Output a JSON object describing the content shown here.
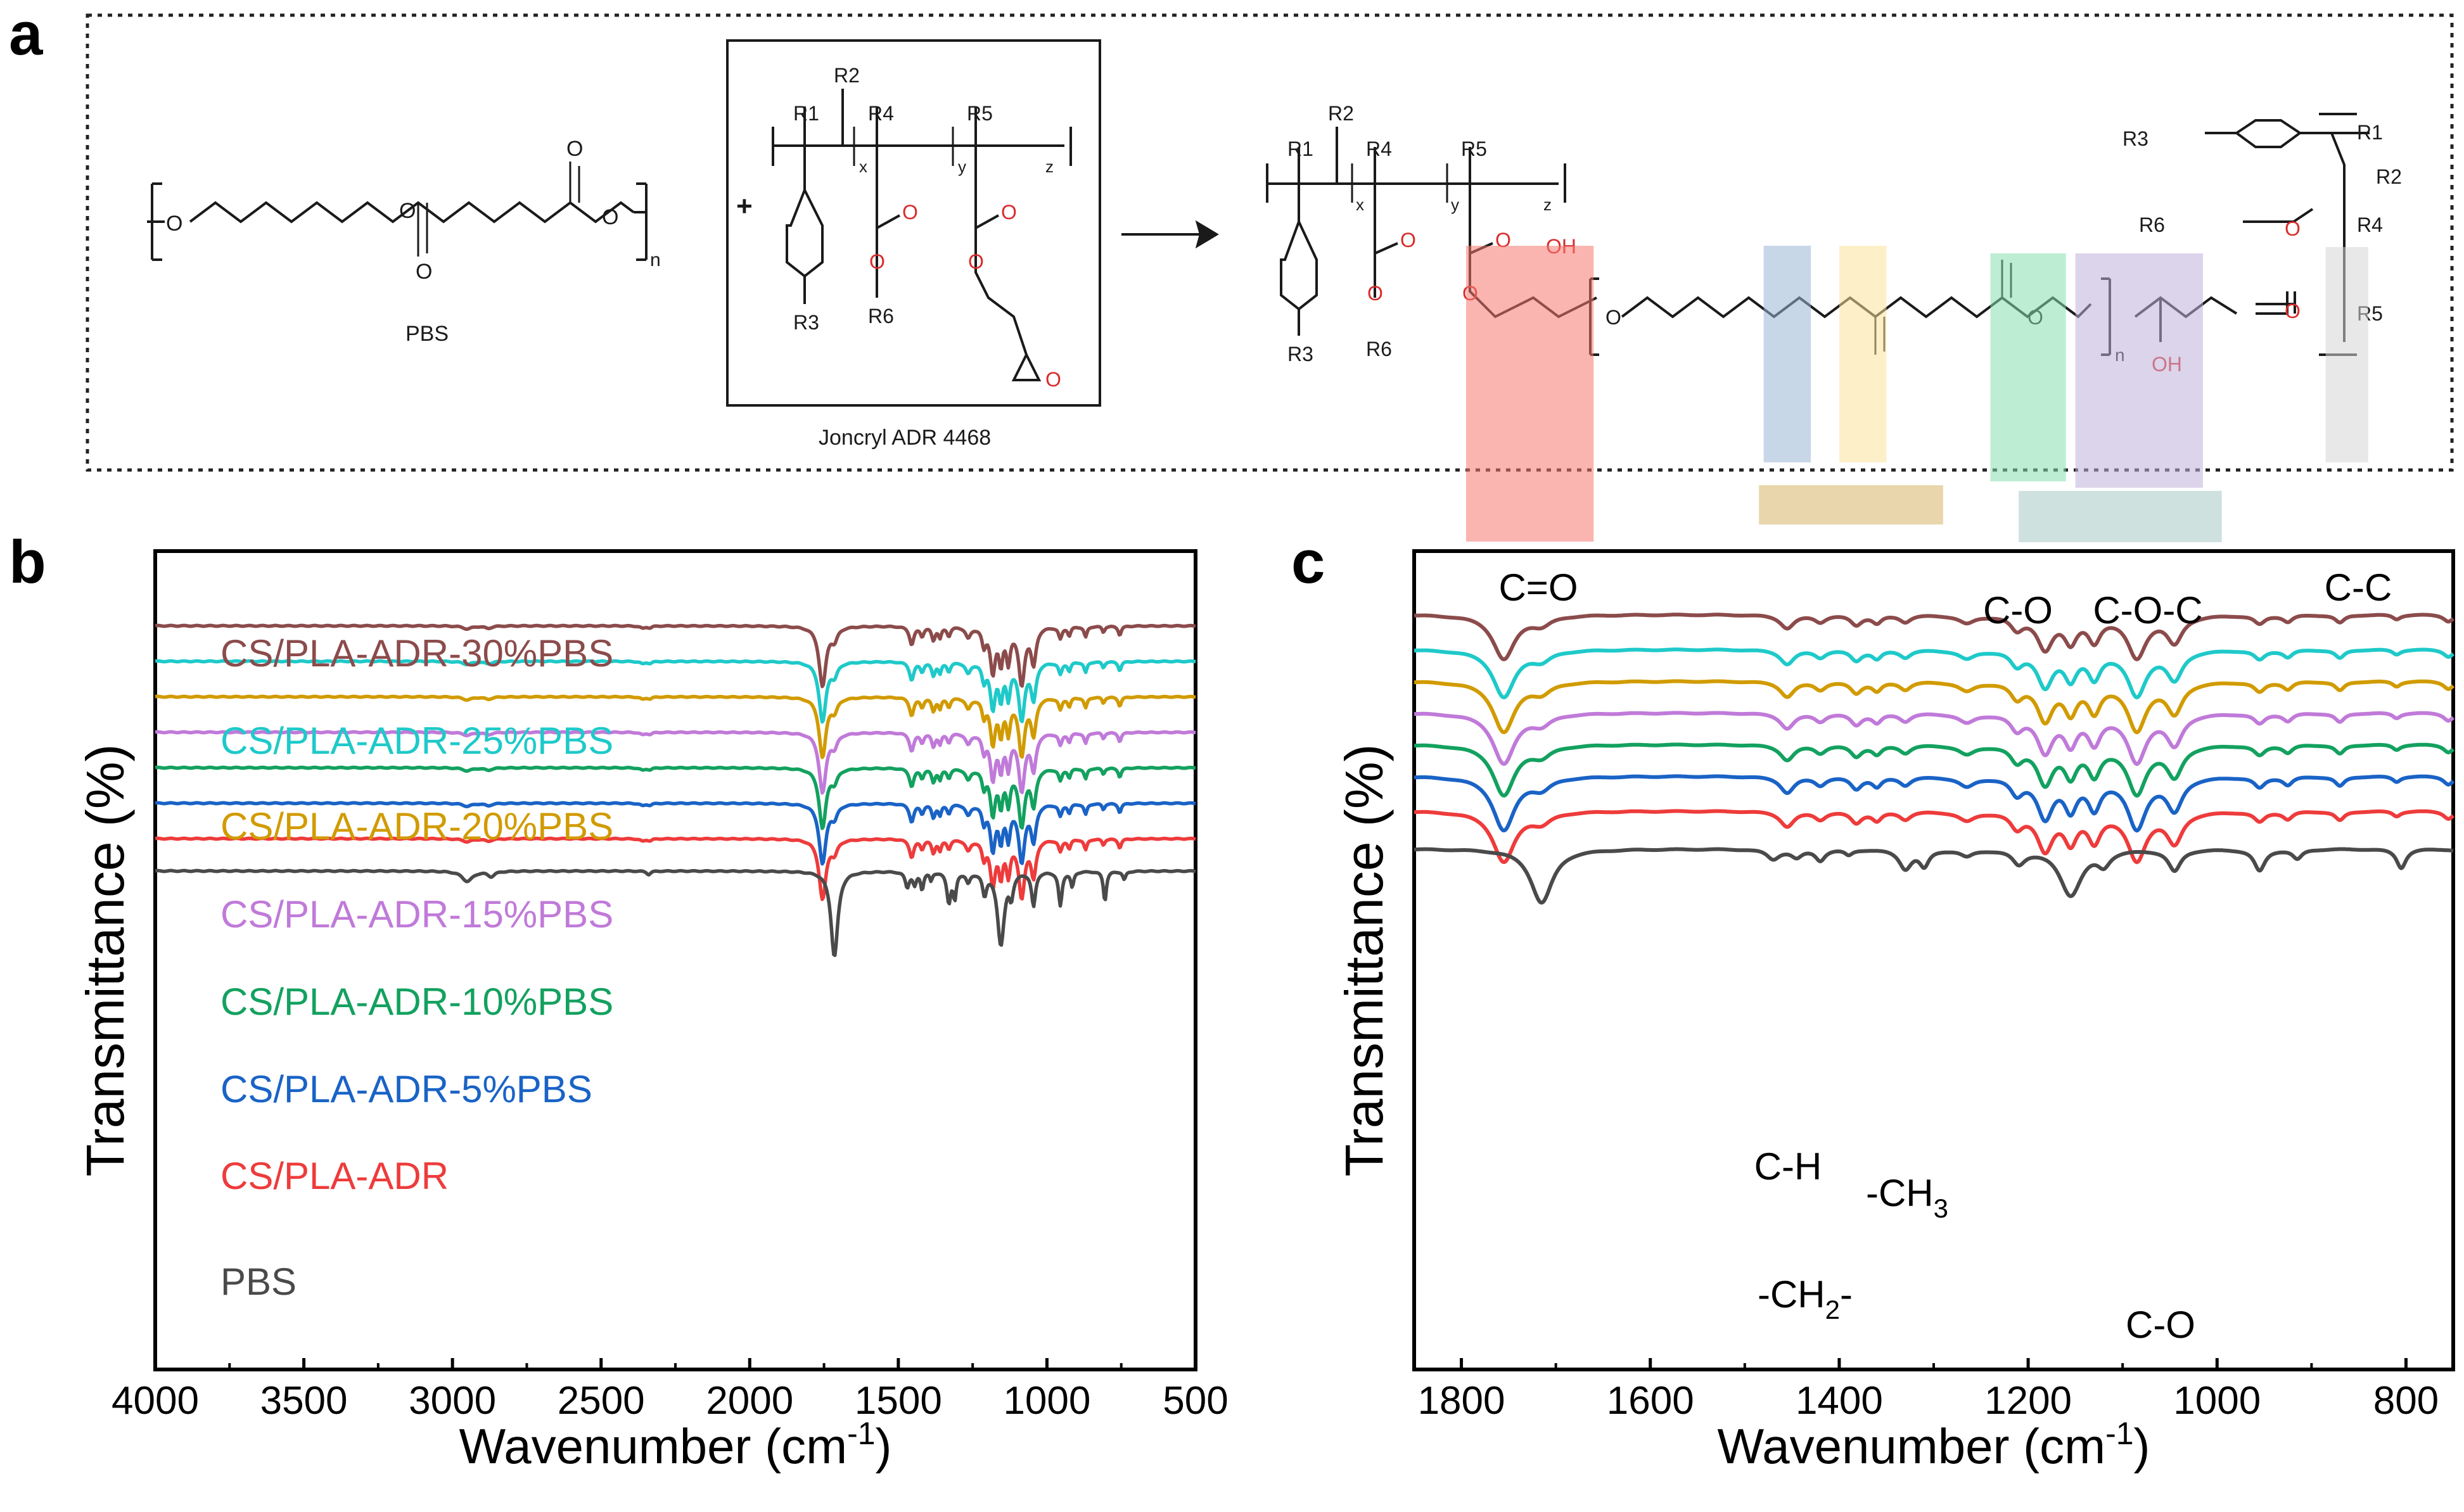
{
  "panel_labels": {
    "a": "a",
    "b": "b",
    "c": "c"
  },
  "scheme": {
    "pbs_label": "PBS",
    "adr_label": "Joncryl ADR 4468",
    "plus": "+",
    "sub_n": "n",
    "sub_x": "x",
    "sub_y": "y",
    "sub_z": "z",
    "r1": "R1",
    "r2": "R2",
    "r3": "R3",
    "r4": "R4",
    "r5": "R5",
    "r6": "R6",
    "atom_o": "O",
    "atom_oh": "OH"
  },
  "colors": {
    "PBS": "#4a4a4a",
    "ADR": "#ee3b3b",
    "5": "#1a63c6",
    "10": "#13a15f",
    "15": "#c07ad9",
    "20": "#d19b00",
    "25": "#1fc9c9",
    "30": "#8c4b4b",
    "oxygen": "#d92b2b"
  },
  "chart_data": [
    {
      "type": "line",
      "panel": "b",
      "xlabel": "Wavenumber (cm",
      "xlabel_sup": "-1",
      "xlabel_close": ")",
      "ylabel": "Transmittance (%)",
      "xlim": [
        4000,
        500
      ],
      "x_reversed": true,
      "xticks": [
        "4000",
        "3500",
        "3000",
        "2500",
        "2000",
        "1500",
        "1000",
        "500"
      ],
      "series": [
        {
          "name": "CS/PLA-ADR-30%PBS",
          "color": "#8c4b4b"
        },
        {
          "name": "CS/PLA-ADR-25%PBS",
          "color": "#1fc9c9"
        },
        {
          "name": "CS/PLA-ADR-20%PBS",
          "color": "#d19b00"
        },
        {
          "name": "CS/PLA-ADR-15%PBS",
          "color": "#c07ad9"
        },
        {
          "name": "CS/PLA-ADR-10%PBS",
          "color": "#13a15f"
        },
        {
          "name": "CS/PLA-ADR-5%PBS",
          "color": "#1a63c6"
        },
        {
          "name": "CS/PLA-ADR",
          "color": "#ee3b3b"
        },
        {
          "name": "PBS",
          "color": "#4a4a4a"
        }
      ],
      "peaks_cm1": [
        2950,
        2880,
        2350,
        1755,
        1715,
        1455,
        1380,
        1330,
        1265,
        1180,
        1155,
        1130,
        1085,
        1045,
        955,
        870,
        805,
        755
      ]
    },
    {
      "type": "line",
      "panel": "c",
      "xlabel": "Wavenumber (cm",
      "xlabel_sup": "-1",
      "xlabel_close": ")",
      "ylabel": "Transmittance (%)",
      "xlim": [
        1850,
        750
      ],
      "x_reversed": true,
      "xticks": [
        "1800",
        "1600",
        "1400",
        "1200",
        "1000",
        "800"
      ],
      "series": [
        {
          "name": "CS/PLA-ADR-30%PBS",
          "color": "#8c4b4b"
        },
        {
          "name": "CS/PLA-ADR-25%PBS",
          "color": "#1fc9c9"
        },
        {
          "name": "CS/PLA-ADR-20%PBS",
          "color": "#d19b00"
        },
        {
          "name": "CS/PLA-ADR-15%PBS",
          "color": "#c07ad9"
        },
        {
          "name": "CS/PLA-ADR-10%PBS",
          "color": "#13a15f"
        },
        {
          "name": "CS/PLA-ADR-5%PBS",
          "color": "#1a63c6"
        },
        {
          "name": "CS/PLA-ADR",
          "color": "#ee3b3b"
        },
        {
          "name": "PBS",
          "color": "#4a4a4a"
        }
      ],
      "bands": [
        {
          "label": "C=O",
          "from": 1795,
          "to": 1660,
          "color": "#f7786f"
        },
        {
          "label": "C-H",
          "from": 1480,
          "to": 1430,
          "color": "#9ab6d4"
        },
        {
          "label": "-CH3",
          "from": 1400,
          "to": 1350,
          "color": "#fbe39b"
        },
        {
          "label": "C-O",
          "from": 1240,
          "to": 1160,
          "color": "#86e0b0"
        },
        {
          "label": "C-O-C",
          "from": 1150,
          "to": 1015,
          "color": "#bfb1d8"
        },
        {
          "label": "C-C",
          "from": 885,
          "to": 840,
          "color": "#d6d6d6"
        },
        {
          "label": "-CH2-",
          "from": 1485,
          "to": 1290,
          "color": "#d7b46a"
        },
        {
          "label": "C-O",
          "from": 1210,
          "to": 995,
          "color": "#a8c9c5"
        }
      ],
      "annotations": {
        "ch3_main": "-CH",
        "ch3_sub": "3",
        "ch2_main": "-CH",
        "ch2_sub": "2",
        "ch2_tail": "-"
      }
    }
  ]
}
